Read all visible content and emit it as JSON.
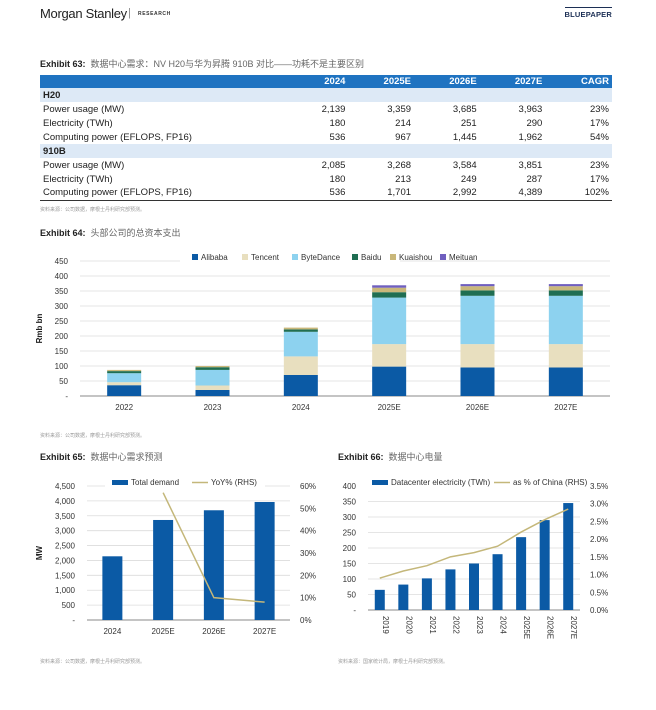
{
  "header": {
    "brand": "Morgan Stanley",
    "separator": "|",
    "brand_sub": "RESEARCH",
    "series": "BLUEPAPER"
  },
  "exhibit63": {
    "label": "Exhibit 63:",
    "title": "数据中心需求：NV H20与华为昇腾 910B 对比——功耗不是主要区别",
    "columns": [
      "",
      "2024",
      "2025E",
      "2026E",
      "2027E",
      "CAGR"
    ],
    "sections": [
      {
        "name": "H20",
        "rows": [
          {
            "label": "Power usage (MW)",
            "values": [
              "2,139",
              "3,359",
              "3,685",
              "3,963",
              "23%"
            ]
          },
          {
            "label": "Electricity (TWh)",
            "values": [
              "180",
              "214",
              "251",
              "290",
              "17%"
            ]
          },
          {
            "label": "Computing power (EFLOPS, FP16)",
            "values": [
              "536",
              "967",
              "1,445",
              "1,962",
              "54%"
            ]
          }
        ]
      },
      {
        "name": "910B",
        "rows": [
          {
            "label": "Power usage (MW)",
            "values": [
              "2,085",
              "3,268",
              "3,584",
              "3,851",
              "23%"
            ]
          },
          {
            "label": "Electricity (TWh)",
            "values": [
              "180",
              "213",
              "249",
              "287",
              "17%"
            ]
          },
          {
            "label": "Computing power (EFLOPS, FP16)",
            "values": [
              "536",
              "1,701",
              "2,992",
              "4,389",
              "102%"
            ]
          }
        ]
      }
    ],
    "source": "资料来源：公司数据，摩根士丹利研究部预测。"
  },
  "exhibit64": {
    "label": "Exhibit 64:",
    "title": "头部公司的总资本支出",
    "source": "资料来源：公司数据，摩根士丹利研究部预测。"
  },
  "exhibit65": {
    "label": "Exhibit 65:",
    "title": "数据中心需求预测",
    "source": "资料来源：公司数据，摩根士丹利研究部预测。"
  },
  "exhibit66": {
    "label": "Exhibit 66:",
    "title": "数据中心电量",
    "source": "资料来源：国家统计局，摩根士丹利研究部预测。"
  },
  "chart_data": [
    {
      "id": "exhibit64",
      "type": "bar",
      "stacked": true,
      "title": "头部公司的总资本支出",
      "xlabel": "",
      "ylabel": "Rmb bn",
      "ylim": [
        0,
        450
      ],
      "yticks": [
        0,
        50,
        100,
        150,
        200,
        250,
        300,
        350,
        400,
        450
      ],
      "ytick_labels": [
        "-",
        "50",
        "100",
        "150",
        "200",
        "250",
        "300",
        "350",
        "400",
        "450"
      ],
      "grid": true,
      "legend": "top-center",
      "categories": [
        "2022",
        "2023",
        "2024",
        "2025E",
        "2026E",
        "2027E"
      ],
      "series": [
        {
          "name": "Alibaba",
          "color": "#0b5aa5",
          "values": [
            36,
            20,
            70,
            98,
            95,
            95
          ]
        },
        {
          "name": "Tencent",
          "color": "#e8dfbf",
          "values": [
            10,
            15,
            62,
            75,
            78,
            78
          ]
        },
        {
          "name": "ByteDance",
          "color": "#8dd2ef",
          "values": [
            30,
            52,
            82,
            155,
            161,
            161
          ]
        },
        {
          "name": "Baidu",
          "color": "#1f6e52",
          "values": [
            7,
            9,
            8,
            18,
            18,
            18
          ]
        },
        {
          "name": "Kuaishou",
          "color": "#c9b77a",
          "values": [
            4,
            4,
            6,
            15,
            14,
            14
          ]
        },
        {
          "name": "Meituan",
          "color": "#6f5fbf",
          "values": [
            0,
            0,
            0,
            8,
            7,
            7
          ]
        }
      ]
    },
    {
      "id": "exhibit65",
      "type": "bar",
      "title": "数据中心需求预测",
      "xlabel": "",
      "ylabel": "MW",
      "ylim": [
        0,
        4500
      ],
      "yticks": [
        0,
        500,
        1000,
        1500,
        2000,
        2500,
        3000,
        3500,
        4000,
        4500
      ],
      "ytick_labels": [
        "-",
        "500",
        "1,000",
        "1,500",
        "2,000",
        "2,500",
        "3,000",
        "3,500",
        "4,000",
        "4,500"
      ],
      "y2lim": [
        0,
        60
      ],
      "y2ticks": [
        0,
        10,
        20,
        30,
        40,
        50,
        60
      ],
      "y2tick_labels": [
        "0%",
        "10%",
        "20%",
        "30%",
        "40%",
        "50%",
        "60%"
      ],
      "grid": true,
      "legend": "top-center",
      "categories": [
        "2024",
        "2025E",
        "2026E",
        "2027E"
      ],
      "series": [
        {
          "name": "Total demand",
          "type": "bar",
          "axis": "left",
          "color": "#0b5aa5",
          "values": [
            2139,
            3359,
            3685,
            3963
          ]
        },
        {
          "name": "YoY% (RHS)",
          "type": "line",
          "axis": "right",
          "color": "#c4b77a",
          "values": [
            null,
            57,
            10,
            8
          ]
        }
      ]
    },
    {
      "id": "exhibit66",
      "type": "bar",
      "title": "数据中心电量",
      "xlabel": "",
      "ylabel": "",
      "ylim": [
        0,
        400
      ],
      "yticks": [
        0,
        50,
        100,
        150,
        200,
        250,
        300,
        350,
        400
      ],
      "ytick_labels": [
        "-",
        "50",
        "100",
        "150",
        "200",
        "250",
        "300",
        "350",
        "400"
      ],
      "y2lim": [
        0,
        3.5
      ],
      "y2ticks": [
        0,
        0.5,
        1.0,
        1.5,
        2.0,
        2.5,
        3.0,
        3.5
      ],
      "y2tick_labels": [
        "0.0%",
        "0.5%",
        "1.0%",
        "1.5%",
        "2.0%",
        "2.5%",
        "3.0%",
        "3.5%"
      ],
      "grid": true,
      "legend": "top-center",
      "categories": [
        "2019",
        "2020",
        "2021",
        "2022",
        "2023",
        "2024",
        "2025E",
        "2026E",
        "2027E"
      ],
      "series": [
        {
          "name": "Datacenter electricity (TWh)",
          "type": "bar",
          "axis": "left",
          "color": "#0b5aa5",
          "values": [
            65,
            82,
            102,
            131,
            150,
            180,
            235,
            290,
            345
          ]
        },
        {
          "name": "as % of China (RHS)",
          "type": "line",
          "axis": "right",
          "color": "#c4b77a",
          "values": [
            0.9,
            1.1,
            1.25,
            1.5,
            1.62,
            1.8,
            2.2,
            2.55,
            2.85
          ]
        }
      ]
    }
  ]
}
